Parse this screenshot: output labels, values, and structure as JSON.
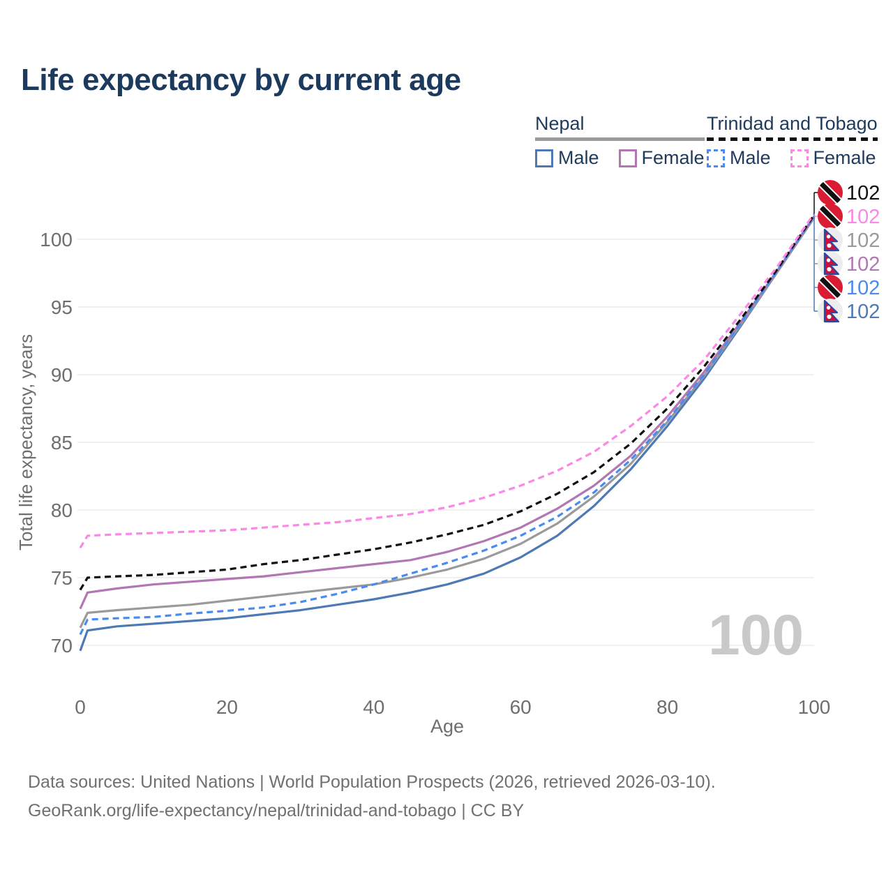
{
  "title": "Life expectancy by current age",
  "legend": {
    "groups": [
      {
        "country": "Nepal",
        "line_style": "solid",
        "underline_color": "#9a9a9a",
        "items": [
          {
            "label": "Male",
            "color": "#4d79b5"
          },
          {
            "label": "Female",
            "color": "#b277b2"
          }
        ]
      },
      {
        "country": "Trinidad and Tobago",
        "line_style": "dashed",
        "underline_color": "#111111",
        "items": [
          {
            "label": "Male",
            "color": "#4a8bf0"
          },
          {
            "label": "Female",
            "color": "#fb87e7"
          }
        ]
      }
    ]
  },
  "chart_data": {
    "type": "line",
    "title": "Life expectancy by current age",
    "xlabel": "Age",
    "ylabel": "Total life expectancy, years",
    "xticks": [
      0,
      20,
      40,
      60,
      80,
      100
    ],
    "yticks": [
      70,
      75,
      80,
      85,
      90,
      95,
      100
    ],
    "xlim": [
      0,
      100
    ],
    "ylim": [
      68,
      103
    ],
    "grid": "horizontal",
    "legend_position": "top-right",
    "x": [
      0,
      1,
      5,
      10,
      15,
      20,
      25,
      30,
      35,
      40,
      45,
      50,
      55,
      60,
      65,
      70,
      75,
      80,
      85,
      90,
      95,
      100
    ],
    "series": [
      {
        "id": "nepal-male",
        "name": "Nepal - Male",
        "color": "#4d79b5",
        "dashed": false,
        "values": [
          69.6,
          71.1,
          71.4,
          71.6,
          71.8,
          72.0,
          72.3,
          72.6,
          73.0,
          73.4,
          73.9,
          74.5,
          75.3,
          76.5,
          78.1,
          80.3,
          83.0,
          86.2,
          89.7,
          93.6,
          97.6,
          101.6
        ]
      },
      {
        "id": "nepal-all",
        "name": "Nepal - All",
        "color": "#9a9a9a",
        "dashed": false,
        "values": [
          71.3,
          72.4,
          72.6,
          72.8,
          73.0,
          73.3,
          73.6,
          73.9,
          74.2,
          74.5,
          75.0,
          75.6,
          76.4,
          77.5,
          79.0,
          81.0,
          83.4,
          86.5,
          89.9,
          93.7,
          97.6,
          101.6
        ]
      },
      {
        "id": "nepal-female",
        "name": "Nepal - Female",
        "color": "#b277b2",
        "dashed": false,
        "values": [
          72.7,
          73.9,
          74.2,
          74.5,
          74.7,
          74.9,
          75.1,
          75.4,
          75.7,
          76.0,
          76.3,
          76.9,
          77.7,
          78.7,
          80.1,
          81.8,
          84.0,
          86.9,
          90.2,
          93.9,
          97.7,
          101.7
        ]
      },
      {
        "id": "tt-male",
        "name": "Trinidad and Tobago - Male",
        "color": "#4a8bf0",
        "dashed": true,
        "values": [
          70.8,
          71.9,
          72.0,
          72.1,
          72.35,
          72.55,
          72.8,
          73.2,
          73.8,
          74.5,
          75.3,
          76.1,
          77.0,
          78.1,
          79.5,
          81.3,
          83.7,
          86.6,
          90.0,
          93.8,
          97.7,
          101.7
        ]
      },
      {
        "id": "tt-all",
        "name": "Trinidad and Tobago - All",
        "color": "#111111",
        "dashed": true,
        "values": [
          74.1,
          75.0,
          75.1,
          75.2,
          75.4,
          75.6,
          76.0,
          76.3,
          76.7,
          77.1,
          77.6,
          78.2,
          78.9,
          79.9,
          81.2,
          82.8,
          84.9,
          87.5,
          90.6,
          94.1,
          97.8,
          101.8
        ]
      },
      {
        "id": "tt-female",
        "name": "Trinidad and Tobago - Female",
        "color": "#fb87e7",
        "dashed": true,
        "values": [
          77.2,
          78.1,
          78.2,
          78.3,
          78.4,
          78.5,
          78.7,
          78.9,
          79.1,
          79.4,
          79.7,
          80.2,
          80.9,
          81.8,
          82.9,
          84.3,
          86.2,
          88.4,
          91.1,
          94.5,
          98.0,
          101.9
        ]
      }
    ],
    "end_labels": [
      {
        "series": "tt-all",
        "flag": "trinidad-and-tobago",
        "text": "102",
        "color": "#111111"
      },
      {
        "series": "tt-female",
        "flag": "trinidad-and-tobago",
        "text": "102",
        "color": "#fb87e7"
      },
      {
        "series": "nepal-all",
        "flag": "nepal",
        "text": "102",
        "color": "#9a9a9a"
      },
      {
        "series": "nepal-female",
        "flag": "nepal",
        "text": "102",
        "color": "#b277b2"
      },
      {
        "series": "tt-male",
        "flag": "trinidad-and-tobago",
        "text": "102",
        "color": "#4a8bf0"
      },
      {
        "series": "nepal-male",
        "flag": "nepal",
        "text": "102",
        "color": "#4d79b5"
      }
    ]
  },
  "age_watermark": "100",
  "footer": {
    "line1": "Data sources: United Nations | World Population Prospects (2026, retrieved 2026-03-10).",
    "line2": "GeoRank.org/life-expectancy/nepal/trinidad-and-tobago | CC BY"
  },
  "colors": {
    "title_text": "#1b3a5e",
    "legend_text": "#1e3a5c",
    "axis_text": "#6e6e6e",
    "gridline": "#ebebeb",
    "watermark": "#c9c9c9",
    "footer_text": "#707070",
    "flag_tt_red": "#d91c34",
    "flag_nepal_crimson": "#d0103a",
    "flag_nepal_blue": "#2b47a4"
  }
}
